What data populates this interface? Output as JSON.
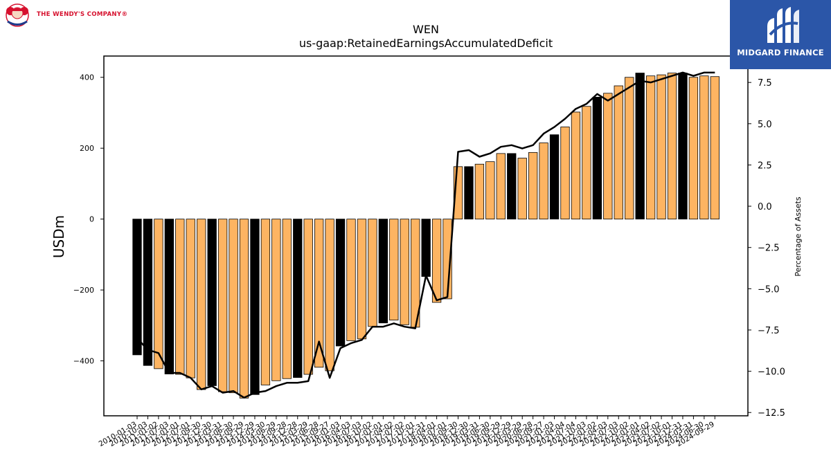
{
  "branding": {
    "left_logo_text": "THE WENDY'S COMPANY®",
    "left_logo_icon": "wendys-girl-icon",
    "right_logo_text": "MIDGARD FINANCE",
    "right_logo_icon": "midgard-finance-icon",
    "right_logo_bg": "#2b56a8",
    "left_logo_color": "#d6112e"
  },
  "chart_data": {
    "type": "bar",
    "title": "WEN",
    "subtitle": "us-gaap:RetainedEarningsAccumulatedDeficit",
    "ylabel": "USDm",
    "y2label": "Percentage of Assets",
    "ylim": [
      -555,
      460
    ],
    "y2lim": [
      -12.7,
      9.1
    ],
    "yticks": [
      -400,
      -200,
      0,
      200,
      400
    ],
    "yticklabels": [
      "−400",
      "−200",
      "0",
      "200",
      "400"
    ],
    "y2ticks": [
      -12.5,
      -10.0,
      -7.5,
      -5.0,
      -2.5,
      0.0,
      2.5,
      5.0,
      7.5
    ],
    "y2ticklabels": [
      "−12.5",
      "−10.0",
      "−7.5",
      "−5.0",
      "−2.5",
      "0.0",
      "2.5",
      "5.0",
      "7.5"
    ],
    "colors": {
      "bar_normal": "#fdb462",
      "bar_highlight": "#000000",
      "line": "#000000",
      "bar_edge": "#000000"
    },
    "xticklabels": [
      "2010-01-03",
      "2010-10-03",
      "2011-01-02",
      "2011-07-03",
      "2012-01-01",
      "2012-07-01",
      "2012-09-30",
      "2012-12-30",
      "2013-03-31",
      "2013-06-30",
      "2013-09-29",
      "2013-12-29",
      "2014-03-30",
      "2014-06-29",
      "2014-09-28",
      "2014-12-28",
      "2015-03-29",
      "2015-06-28",
      "2015-09-27",
      "2016-01-03",
      "2016-04-03",
      "2016-07-03",
      "2016-10-02",
      "2017-01-01",
      "2017-04-02",
      "2017-07-02",
      "2017-10-01",
      "2017-12-31",
      "2018-04-01",
      "2018-07-01",
      "2018-09-30",
      "2018-12-30",
      "2019-03-31",
      "2019-06-30",
      "2019-09-29",
      "2019-12-29",
      "2020-03-29",
      "2020-06-28",
      "2020-09-27",
      "2021-01-03",
      "2021-04-04",
      "2021-07-04",
      "2021-10-03",
      "2022-01-02",
      "2022-04-03",
      "2022-07-03",
      "2022-10-02",
      "2023-01-01",
      "2023-04-02",
      "2023-07-02",
      "2023-10-01",
      "2023-12-31",
      "2024-03-31",
      "2024-06-30",
      "2024-09-29"
    ],
    "values": [
      -383,
      -413,
      -422,
      -437,
      -438,
      -448,
      -481,
      -470,
      -487,
      -490,
      -505,
      -495,
      -468,
      -456,
      -450,
      -447,
      -438,
      -418,
      -428,
      -358,
      -343,
      -338,
      -303,
      -293,
      -285,
      -298,
      -305,
      -162,
      -235,
      -225,
      148,
      148,
      155,
      162,
      185,
      185,
      172,
      188,
      215,
      238,
      260,
      302,
      318,
      344,
      355,
      376,
      400,
      412,
      404,
      407,
      412,
      412,
      400,
      404,
      402
    ],
    "highlight": [
      1,
      1,
      0,
      1,
      0,
      0,
      0,
      1,
      0,
      0,
      0,
      1,
      0,
      0,
      0,
      1,
      0,
      0,
      0,
      1,
      0,
      0,
      0,
      1,
      0,
      0,
      0,
      1,
      0,
      0,
      0,
      1,
      0,
      0,
      0,
      1,
      0,
      0,
      0,
      1,
      0,
      0,
      0,
      1,
      0,
      0,
      0,
      1,
      0,
      0,
      0,
      1,
      0,
      0,
      0
    ],
    "pct_of_assets": [
      -8.0,
      -8.7,
      -8.9,
      -10.1,
      -10.1,
      -10.4,
      -11.1,
      -10.9,
      -11.3,
      -11.2,
      -11.6,
      -11.3,
      -11.2,
      -10.9,
      -10.7,
      -10.7,
      -10.6,
      -8.2,
      -10.4,
      -8.6,
      -8.3,
      -8.1,
      -7.3,
      -7.3,
      -7.1,
      -7.3,
      -7.4,
      -4.2,
      -5.7,
      -5.5,
      3.3,
      3.4,
      3.0,
      3.2,
      3.6,
      3.7,
      3.5,
      3.7,
      4.4,
      4.8,
      5.3,
      5.9,
      6.2,
      6.8,
      6.4,
      6.8,
      7.2,
      7.6,
      7.5,
      7.7,
      7.9,
      8.1,
      7.9,
      8.1,
      8.1
    ]
  }
}
